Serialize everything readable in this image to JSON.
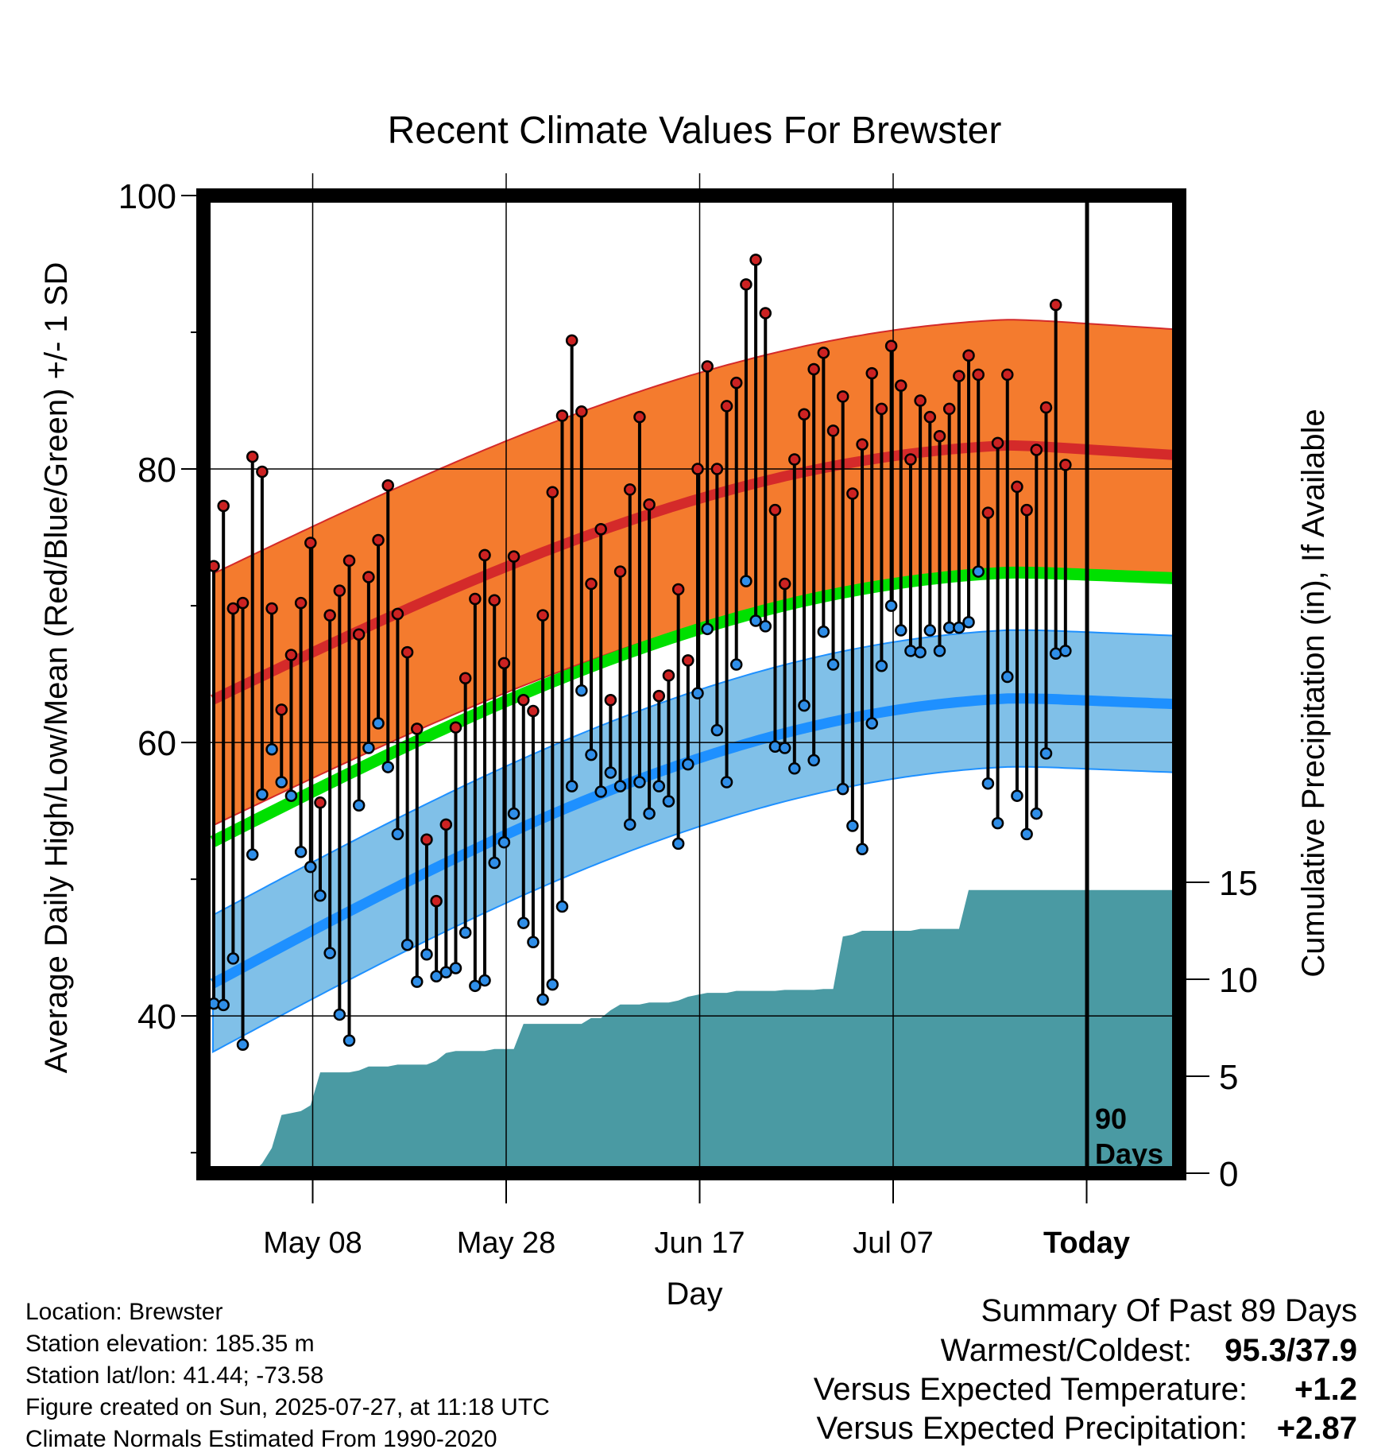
{
  "chart_data": {
    "type": "line",
    "title": "Recent Climate Values For Brewster",
    "xlabel": "Day",
    "ylabel": "Average Daily High/Low/Mean (Red/Blue/Green) +/- 1 SD",
    "ylabel_right": "Cumulative Precipitation (in), If Available",
    "ylim": [
      28.5,
      100
    ],
    "ylim_right": [
      0,
      15
    ],
    "x_tick_labels": [
      "May 08",
      "May 28",
      "Jun 17",
      "Jul 07",
      "Today"
    ],
    "y_ticks": [
      40,
      60,
      80,
      100
    ],
    "y_ticks_right": [
      0,
      5,
      10,
      15
    ],
    "today_marker": "90\nDays",
    "grid": true,
    "colors": {
      "high_band": "#f47b2e",
      "high_band_edge": "#d42a2a",
      "high_mean": "#d42a2a",
      "low_band": "#80c0e8",
      "low_band_edge": "#1e90ff",
      "low_mean": "#1e90ff",
      "mean": "#00e000",
      "precip": "#4a9aa3",
      "high_dot": "#cc2222",
      "low_dot": "#2f8ee8"
    },
    "series": [
      {
        "name": "Daily High",
        "values": [
          72.9,
          77.3,
          69.8,
          70.2,
          80.9,
          79.8,
          69.8,
          62.4,
          66.4,
          70.2,
          74.6,
          55.6,
          69.3,
          71.1,
          73.3,
          67.9,
          72.1,
          74.8,
          78.8,
          69.4,
          66.6,
          61,
          52.9,
          48.4,
          54,
          61.1,
          64.7,
          70.5,
          73.7,
          70.4,
          65.8,
          73.6,
          63.1,
          62.3,
          69.3,
          78.3,
          83.9,
          89.4,
          84.2,
          71.6,
          75.6,
          63.1,
          72.5,
          78.5,
          83.8,
          77.4,
          63.4,
          64.9,
          71.2,
          66,
          80,
          87.5,
          80,
          84.6,
          86.3,
          93.5,
          95.3,
          91.4,
          77,
          71.6,
          80.7,
          84,
          87.3,
          88.5,
          82.8,
          85.3,
          78.2,
          81.8,
          87,
          84.4,
          89,
          86.1,
          80.7,
          85,
          83.8,
          82.4,
          84.4,
          86.8,
          88.3,
          86.9,
          76.8,
          81.9,
          86.9,
          78.7,
          77,
          81.4,
          84.5,
          92,
          80.3
        ]
      },
      {
        "name": "Daily Low",
        "values": [
          40.9,
          40.8,
          44.2,
          37.9,
          51.8,
          56.2,
          59.5,
          57.1,
          56.1,
          52,
          50.9,
          48.8,
          44.6,
          40.1,
          38.2,
          55.4,
          59.6,
          61.4,
          58.2,
          53.3,
          45.2,
          42.5,
          44.5,
          42.9,
          43.2,
          43.5,
          46.1,
          42.2,
          42.6,
          51.2,
          52.7,
          54.8,
          46.8,
          45.4,
          41.2,
          42.3,
          48,
          56.8,
          63.8,
          59.1,
          56.4,
          57.8,
          56.8,
          54,
          57.1,
          54.8,
          56.8,
          55.7,
          52.6,
          58.4,
          63.6,
          68.3,
          60.9,
          57.1,
          65.7,
          71.8,
          68.9,
          68.5,
          59.7,
          59.6,
          58.1,
          62.7,
          58.7,
          68.1,
          65.7,
          56.6,
          53.9,
          52.2,
          61.4,
          65.6,
          70,
          68.2,
          66.7,
          66.6,
          68.2,
          66.7,
          68.4,
          68.4,
          68.8,
          72.5,
          57,
          54.1,
          64.8,
          56.1,
          53.3,
          54.8,
          59.2,
          66.5,
          66.7
        ]
      },
      {
        "name": "Cumulative Precipitation",
        "values": [
          0,
          0,
          0,
          0,
          0,
          0.5,
          1.3,
          3,
          3.1,
          3.2,
          3.5,
          5.2,
          5.2,
          5.2,
          5.2,
          5.3,
          5.5,
          5.5,
          5.5,
          5.6,
          5.6,
          5.6,
          5.6,
          5.8,
          6.2,
          6.3,
          6.3,
          6.3,
          6.3,
          6.4,
          6.4,
          6.4,
          7.7,
          7.7,
          7.7,
          7.7,
          7.7,
          7.7,
          7.7,
          8,
          8,
          8.4,
          8.7,
          8.7,
          8.7,
          8.8,
          8.8,
          8.8,
          8.9,
          9.1,
          9.2,
          9.3,
          9.3,
          9.3,
          9.4,
          9.4,
          9.4,
          9.4,
          9.4,
          9.45,
          9.45,
          9.45,
          9.45,
          9.5,
          9.5,
          12.2,
          12.3,
          12.5,
          12.5,
          12.5,
          12.5,
          12.5,
          12.5,
          12.6,
          12.6,
          12.6,
          12.6,
          12.6,
          14.6,
          14.6,
          14.6,
          14.6,
          14.6,
          14.6,
          14.6,
          14.6,
          14.6,
          14.6,
          14.6
        ]
      }
    ],
    "normals": {
      "high_mean": {
        "start": 62.8,
        "end": 81.0,
        "peak": 81.8
      },
      "high_sd": 9.2,
      "low_mean": {
        "start": 42.0,
        "end": 62.8,
        "peak": 63.3
      },
      "low_sd": 5.0,
      "mean": {
        "start": 52.4,
        "end": 72.0,
        "peak": 72.5
      }
    }
  },
  "footer": {
    "location": "Location: Brewster",
    "elevation": "Station elevation: 185.35 m",
    "latlon": "Station lat/lon: 41.44; -73.58",
    "created": "Figure created on Sun, 2025-07-27, at 11:18 UTC",
    "normals": "Climate Normals Estimated From 1990-2020"
  },
  "summary": {
    "title": "Summary Of Past 89 Days",
    "warmest_label": "Warmest/Coldest:",
    "warmest_value": "95.3/37.9",
    "temp_label": "Versus Expected Temperature:",
    "temp_value": "+1.2",
    "temp_color": "#d42a2a",
    "precip_label": "Versus Expected Precipitation:",
    "precip_value": "+2.87",
    "precip_color": "#22cc22"
  }
}
